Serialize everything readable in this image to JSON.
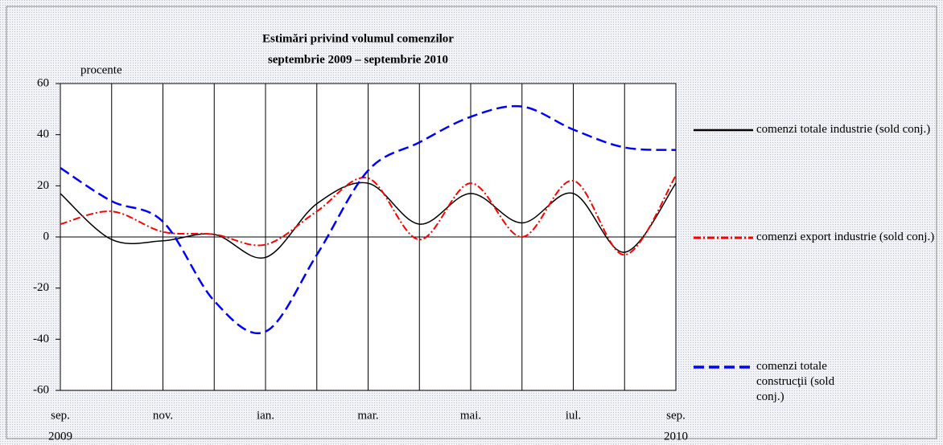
{
  "chart_data": {
    "type": "line",
    "title": "Estimări privind volumul comenzilor",
    "subtitle": "septembrie 2009 – septembrie 2010",
    "y_label": "procente",
    "categories": [
      "sep.",
      null,
      "nov.",
      null,
      "ian.",
      null,
      "mar.",
      null,
      "mai.",
      null,
      "iul.",
      null,
      "sep."
    ],
    "x_sublabels": [
      "2009",
      null,
      null,
      null,
      null,
      null,
      null,
      null,
      null,
      null,
      null,
      null,
      "2010"
    ],
    "series": [
      {
        "name": "comenzi totale industrie (sold conj.)",
        "color": "#000000",
        "dash": "solid",
        "values": [
          17,
          -1,
          -1.5,
          1,
          -8,
          13,
          21,
          5,
          17,
          5.5,
          17,
          -6,
          21
        ]
      },
      {
        "name": "comenzi export industrie (sold conj.)",
        "color": "#ff0000",
        "dash": "dashdot",
        "values": [
          5,
          10,
          2,
          1,
          -3,
          10,
          23,
          -1,
          21,
          0,
          22,
          -7,
          24
        ]
      },
      {
        "name": "comenzi totale construcţii (sold conj.)",
        "color": "#0000ff",
        "dash": "dashed",
        "values": [
          27,
          14,
          6,
          -25,
          -37,
          -7,
          26,
          37,
          47,
          51,
          42,
          35,
          34
        ]
      }
    ],
    "ylim": [
      -60,
      60
    ],
    "yticks": [
      -60,
      -40,
      -20,
      0,
      20,
      40,
      60
    ],
    "grid": "vertical"
  }
}
